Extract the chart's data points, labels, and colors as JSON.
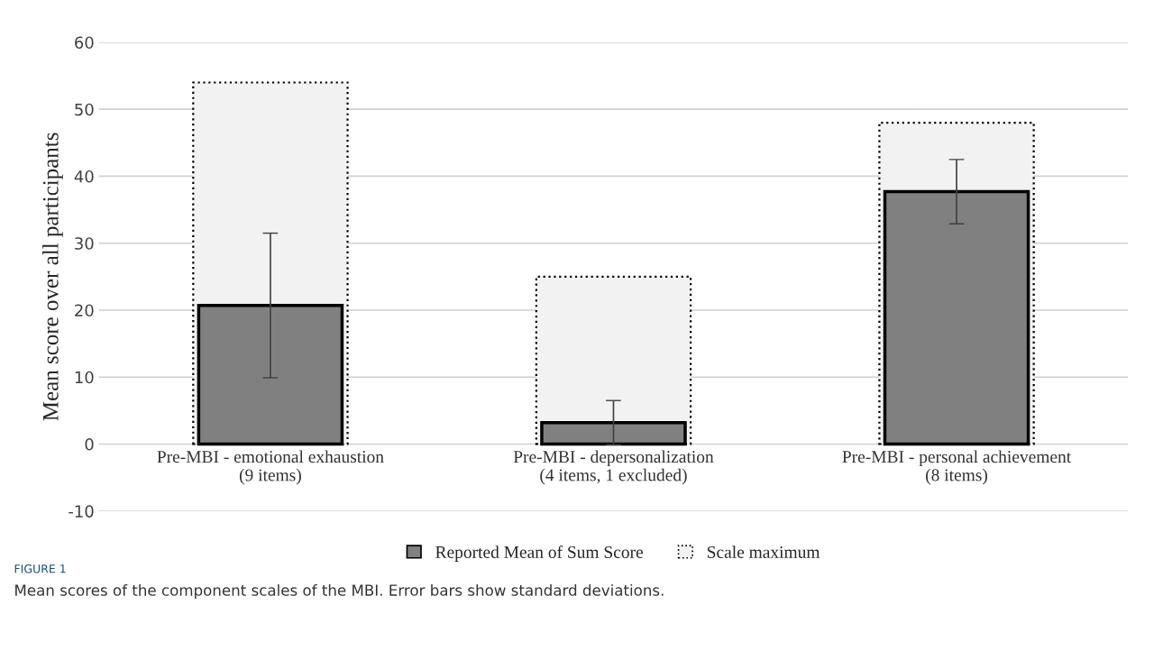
{
  "chart_data": {
    "type": "bar",
    "ylabel": "Mean score over all participants",
    "categories": [
      "Pre-MBI - emotional exhaustion\n(9 items)",
      "Pre-MBI - depersonalization\n(4 items, 1 excluded)",
      "Pre-MBI - personal achievement\n(8 items)"
    ],
    "series": [
      {
        "name": "Scale maximum",
        "color": "#f2f2f2",
        "line_style": "dotted",
        "values": [
          54,
          25,
          48
        ]
      },
      {
        "name": "Reported Mean of Sum Score",
        "color": "#808080",
        "line_style": "solid",
        "values": [
          20.7,
          3.2,
          37.7
        ],
        "errors": [
          10.8,
          3.3,
          4.8
        ]
      }
    ],
    "ylim": [
      -10,
      60
    ],
    "yticks": [
      -10,
      0,
      10,
      20,
      30,
      40,
      50,
      60
    ],
    "grid": "y",
    "legend": "bottom",
    "annotations": [
      "FIGURE 1",
      "Mean scores of the component scales of the MBI. Error bars show standard deviations."
    ]
  }
}
